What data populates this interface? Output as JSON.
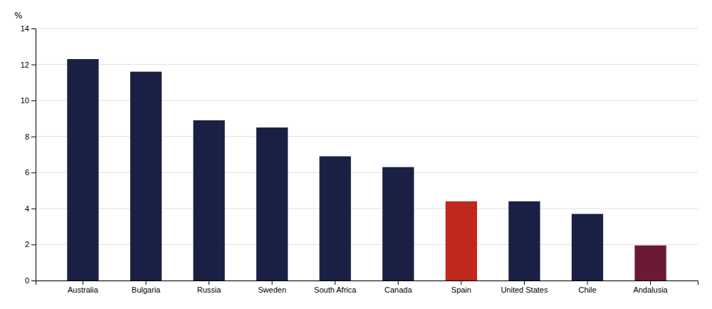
{
  "chart_data": {
    "type": "bar",
    "ylabel": "%",
    "categories": [
      "Australia",
      "Bulgaria",
      "Russia",
      "Sweden",
      "South Africa",
      "Canada",
      "Spain",
      "United States",
      "Chile",
      "Andalusia"
    ],
    "values": [
      12.3,
      11.6,
      8.9,
      8.5,
      6.9,
      6.3,
      4.4,
      4.4,
      3.7,
      1.95
    ],
    "colors": [
      "#1a2044",
      "#1a2044",
      "#1a2044",
      "#1a2044",
      "#1a2044",
      "#1a2044",
      "#c0281c",
      "#1a2044",
      "#1a2044",
      "#6b1a35"
    ],
    "ylim": [
      0,
      14
    ],
    "yticks": [
      0,
      2,
      4,
      6,
      8,
      10,
      12,
      14
    ],
    "grid": true
  }
}
